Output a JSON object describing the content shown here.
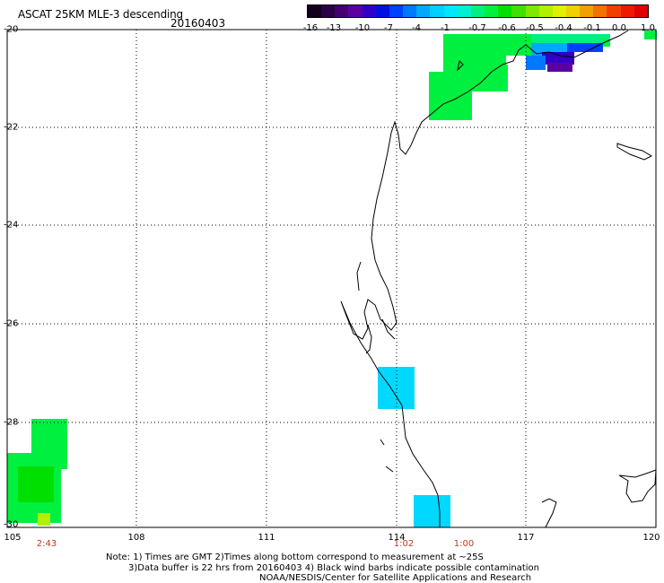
{
  "header": {
    "title": "ASCAT 25KM MLE-3 descending",
    "date": "20160403"
  },
  "colorbar": {
    "labels": [
      "-16",
      "-13",
      "-10",
      "-7",
      "-4",
      "-1",
      "-0.7",
      "-0.6",
      "-0.5",
      "-0.4",
      "-0.1",
      "0.0",
      "1.0"
    ],
    "colors": [
      "#12001e",
      "#2a0046",
      "#44006e",
      "#5a00a0",
      "#3000c8",
      "#0010e0",
      "#0040ff",
      "#0078ff",
      "#00a8ff",
      "#00d0ff",
      "#00e6ff",
      "#00f0d0",
      "#00f080",
      "#00f040",
      "#00e000",
      "#40e000",
      "#80e800",
      "#b0f000",
      "#e0f000",
      "#f0d000",
      "#f0a000",
      "#f07000",
      "#f04000",
      "#f01800",
      "#e00000"
    ]
  },
  "axes": {
    "lat_labels": [
      "-20",
      "-22",
      "-24",
      "-26",
      "-28",
      "-30"
    ],
    "lat_values": [
      -20,
      -22,
      -24,
      -26,
      -28,
      -30
    ],
    "lon_labels": [
      "105",
      "108",
      "111",
      "114",
      "117",
      "120"
    ],
    "lon_values": [
      105,
      108,
      111,
      114,
      117,
      120
    ],
    "lon_range": [
      105,
      120
    ],
    "lat_range": [
      -20,
      -30
    ],
    "grid": true
  },
  "times": [
    "2:43",
    "1:02",
    "1:00"
  ],
  "notes": {
    "line1": "Note: 1) Times are GMT 2)Times along bottom correspond to measurement at ~25S",
    "line2": "3)Data buffer is 22 hrs from 20160403 4) Black wind barbs indicate possible contamination",
    "line3": "NOAA/NESDIS/Center for Satellite Applications and Research"
  }
}
